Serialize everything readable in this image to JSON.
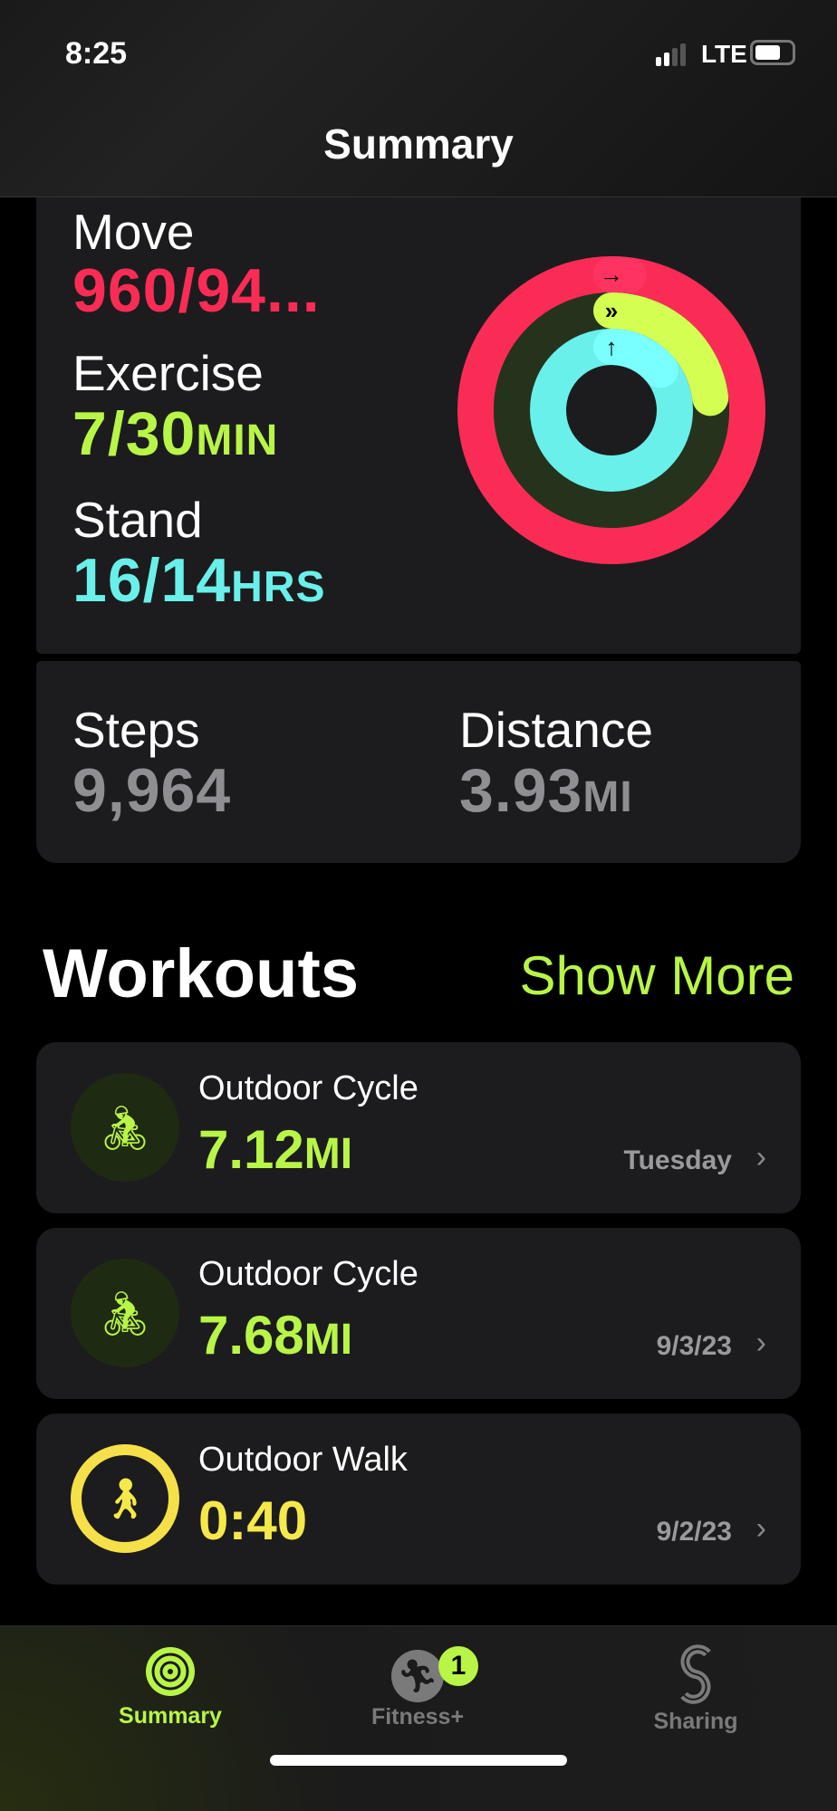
{
  "status": {
    "time": "8:25",
    "network": "LTE",
    "battery_level": 0.7
  },
  "header": {
    "title": "Summary"
  },
  "activity": {
    "move": {
      "label": "Move",
      "value": "960/94...",
      "color": "#fa2c55",
      "progress": 1.02
    },
    "exercise": {
      "label": "Exercise",
      "value": "7/30",
      "unit": "MIN",
      "color": "#b8f547",
      "progress": 0.23
    },
    "stand": {
      "label": "Stand",
      "value": "16/14",
      "unit": "HRS",
      "color": "#6af0ea",
      "progress": 1.14
    }
  },
  "steps": {
    "label": "Steps",
    "value": "9,964"
  },
  "distance": {
    "label": "Distance",
    "value": "3.93",
    "unit": "MI"
  },
  "workouts": {
    "title": "Workouts",
    "show_more": "Show More",
    "items": [
      {
        "name": "Outdoor Cycle",
        "value": "7.12",
        "unit": "MI",
        "date": "Tuesday",
        "icon": "bicycle-icon"
      },
      {
        "name": "Outdoor Cycle",
        "value": "7.68",
        "unit": "MI",
        "date": "9/3/23",
        "icon": "bicycle-icon"
      },
      {
        "name": "Outdoor Walk",
        "value": "0:40",
        "unit": "",
        "date": "9/2/23",
        "icon": "walking-icon"
      }
    ]
  },
  "tabs": [
    {
      "label": "Summary",
      "active": true
    },
    {
      "label": "Fitness+",
      "badge": "1"
    },
    {
      "label": "Sharing"
    }
  ],
  "accent": "#b8f547"
}
